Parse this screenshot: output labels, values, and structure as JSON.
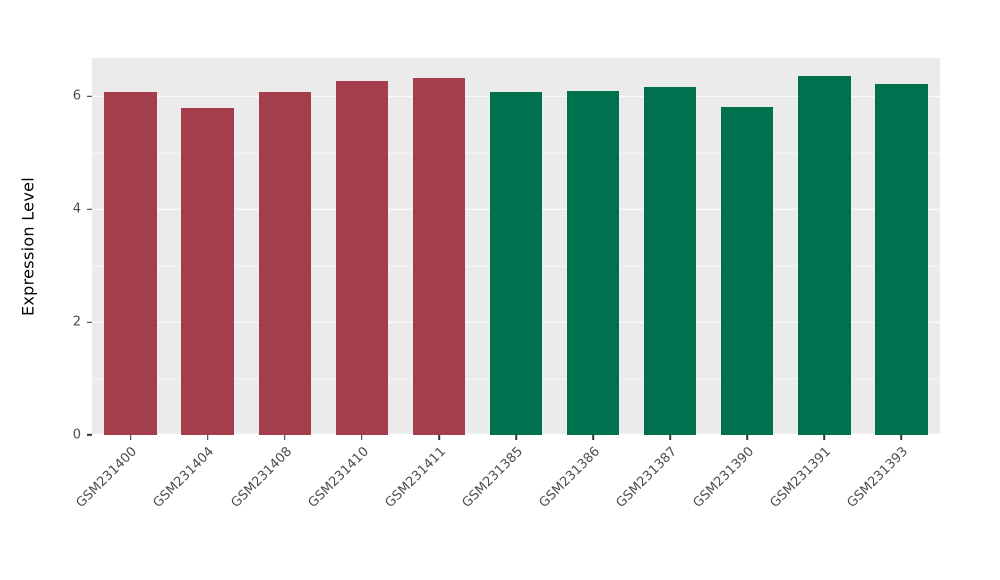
{
  "chart_data": {
    "type": "bar",
    "title": "",
    "ylabel": "Expression Level",
    "xlabel": "",
    "categories": [
      "GSM231400",
      "GSM231404",
      "GSM231408",
      "GSM231410",
      "GSM231411",
      "GSM231385",
      "GSM231386",
      "GSM231387",
      "GSM231390",
      "GSM231391",
      "GSM231393"
    ],
    "values": [
      6.07,
      5.8,
      6.08,
      6.27,
      6.33,
      6.08,
      6.1,
      6.17,
      5.82,
      6.36,
      6.22
    ],
    "bar_colors": [
      "#A53E4C",
      "#A53E4C",
      "#A53E4C",
      "#A53E4C",
      "#A53E4C",
      "#00714F",
      "#00714F",
      "#00714F",
      "#00714F",
      "#00714F",
      "#00714F"
    ],
    "group_colors": {
      "left_group": "#A53E4C",
      "right_group": "#00714F"
    },
    "ylim": [
      0,
      6.68
    ],
    "ytick_values": [
      0,
      2,
      4,
      6
    ],
    "ytick_labels": [
      "0",
      "2",
      "4",
      "6"
    ],
    "minor_grid_values": [
      1,
      3,
      5
    ],
    "grid": "on",
    "legend": "none",
    "panel_background": "#EBEBEB",
    "gridline_color": "#FFFFFF",
    "axis_text_color": "#4D4D4D",
    "tick_mark_color": "#333333",
    "bar_width_fraction": 0.68
  }
}
